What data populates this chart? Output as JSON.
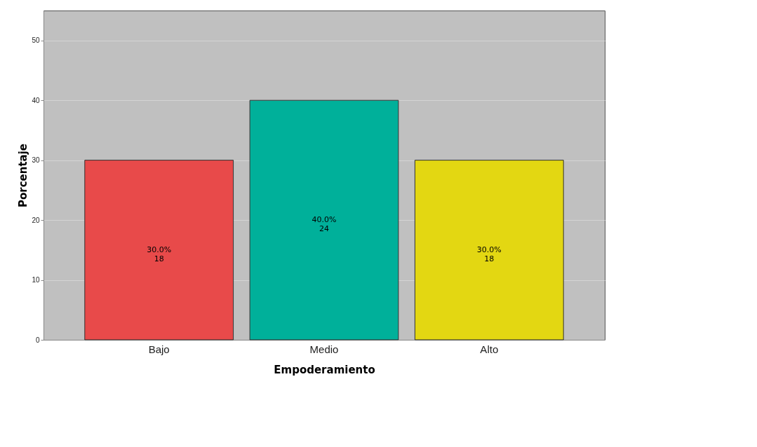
{
  "chart_data": {
    "type": "bar",
    "xlabel": "Empoderamiento",
    "ylabel": "Porcentaje",
    "categories": [
      "Bajo",
      "Medio",
      "Alto"
    ],
    "values": [
      30,
      40,
      30
    ],
    "colors": [
      "#e84a4a",
      "#00b09a",
      "#e3d712"
    ],
    "value_labels": [
      "30.0%\n18",
      "40.0%\n24",
      "30.0%\n18"
    ],
    "ylim": [
      0,
      55
    ],
    "yticks": [
      0,
      10,
      20,
      30,
      40,
      50
    ],
    "grid": "y"
  }
}
